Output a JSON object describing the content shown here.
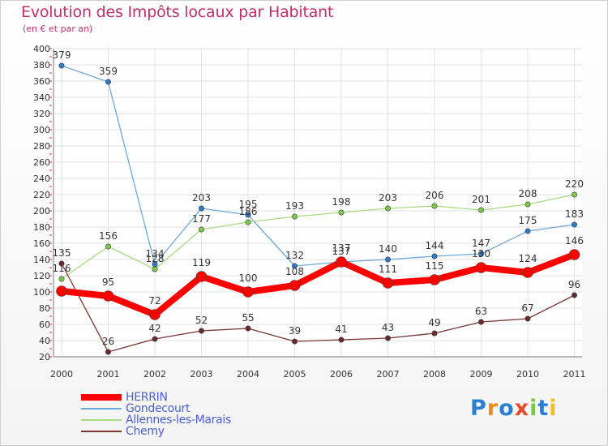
{
  "title": "Evolution des Impôts locaux par Habitant",
  "subtitle": "(en € et par an)",
  "brand": {
    "text": "Proxiti",
    "colors": [
      "#2a7fd4",
      "#f08a1c",
      "#2a7fd4",
      "#e84a2a",
      "#7ac943",
      "#2a7fd4",
      "#f0c020"
    ]
  },
  "chart_data": {
    "type": "line",
    "title": "Evolution des Impôts locaux par Habitant",
    "subtitle": "(en € et par an)",
    "x": [
      "2000",
      "2001",
      "2002",
      "2003",
      "2004",
      "2005",
      "2006",
      "2007",
      "2008",
      "2009",
      "2010",
      "2011"
    ],
    "ylim": [
      20,
      400
    ],
    "yticks": [
      20,
      40,
      60,
      80,
      100,
      120,
      140,
      160,
      180,
      200,
      220,
      240,
      260,
      280,
      300,
      320,
      340,
      360,
      380,
      400
    ],
    "grid": true,
    "legend_position": "bottom-left",
    "series": [
      {
        "name": "Gondecourt",
        "color": "#6ea8d8",
        "marker": "#2f7bc4",
        "values": [
          379,
          359,
          134,
          203,
          195,
          132,
          137,
          140,
          144,
          147,
          175,
          183
        ]
      },
      {
        "name": "Allennes-les-Marais",
        "color": "#a8dc80",
        "marker": "#7cc84a",
        "values": [
          116,
          156,
          128,
          177,
          186,
          193,
          198,
          203,
          206,
          201,
          208,
          220
        ]
      },
      {
        "name": "Chemy",
        "color": "#7a3535",
        "marker": "#6a2a2a",
        "values": [
          135,
          26,
          42,
          52,
          55,
          39,
          41,
          43,
          49,
          63,
          67,
          96
        ]
      },
      {
        "name": "HERRIN",
        "color": "#ff0000",
        "marker": "#ff0000",
        "values": [
          101,
          95,
          72,
          119,
          100,
          108,
          137,
          111,
          115,
          130,
          124,
          146
        ]
      }
    ],
    "labels": {
      "HERRIN": [
        "",
        "95",
        "72",
        "119",
        "100",
        "108",
        "137",
        "111",
        "115",
        "130",
        "124",
        "146"
      ],
      "Gondecourt": [
        "379",
        "359",
        "134",
        "203",
        "195",
        "132",
        "137",
        "140",
        "144",
        "147",
        "175",
        "183"
      ],
      "Allennes-les-Marais": [
        "116",
        "156",
        "128",
        "177",
        "186",
        "193",
        "198",
        "203",
        "206",
        "201",
        "208",
        "220"
      ],
      "Chemy": [
        "135",
        "26",
        "42",
        "52",
        "55",
        "39",
        "41",
        "43",
        "49",
        "63",
        "67",
        "96"
      ]
    },
    "legend": [
      "HERRIN",
      "Gondecourt",
      "Allennes-les-Marais",
      "Chemy"
    ]
  }
}
